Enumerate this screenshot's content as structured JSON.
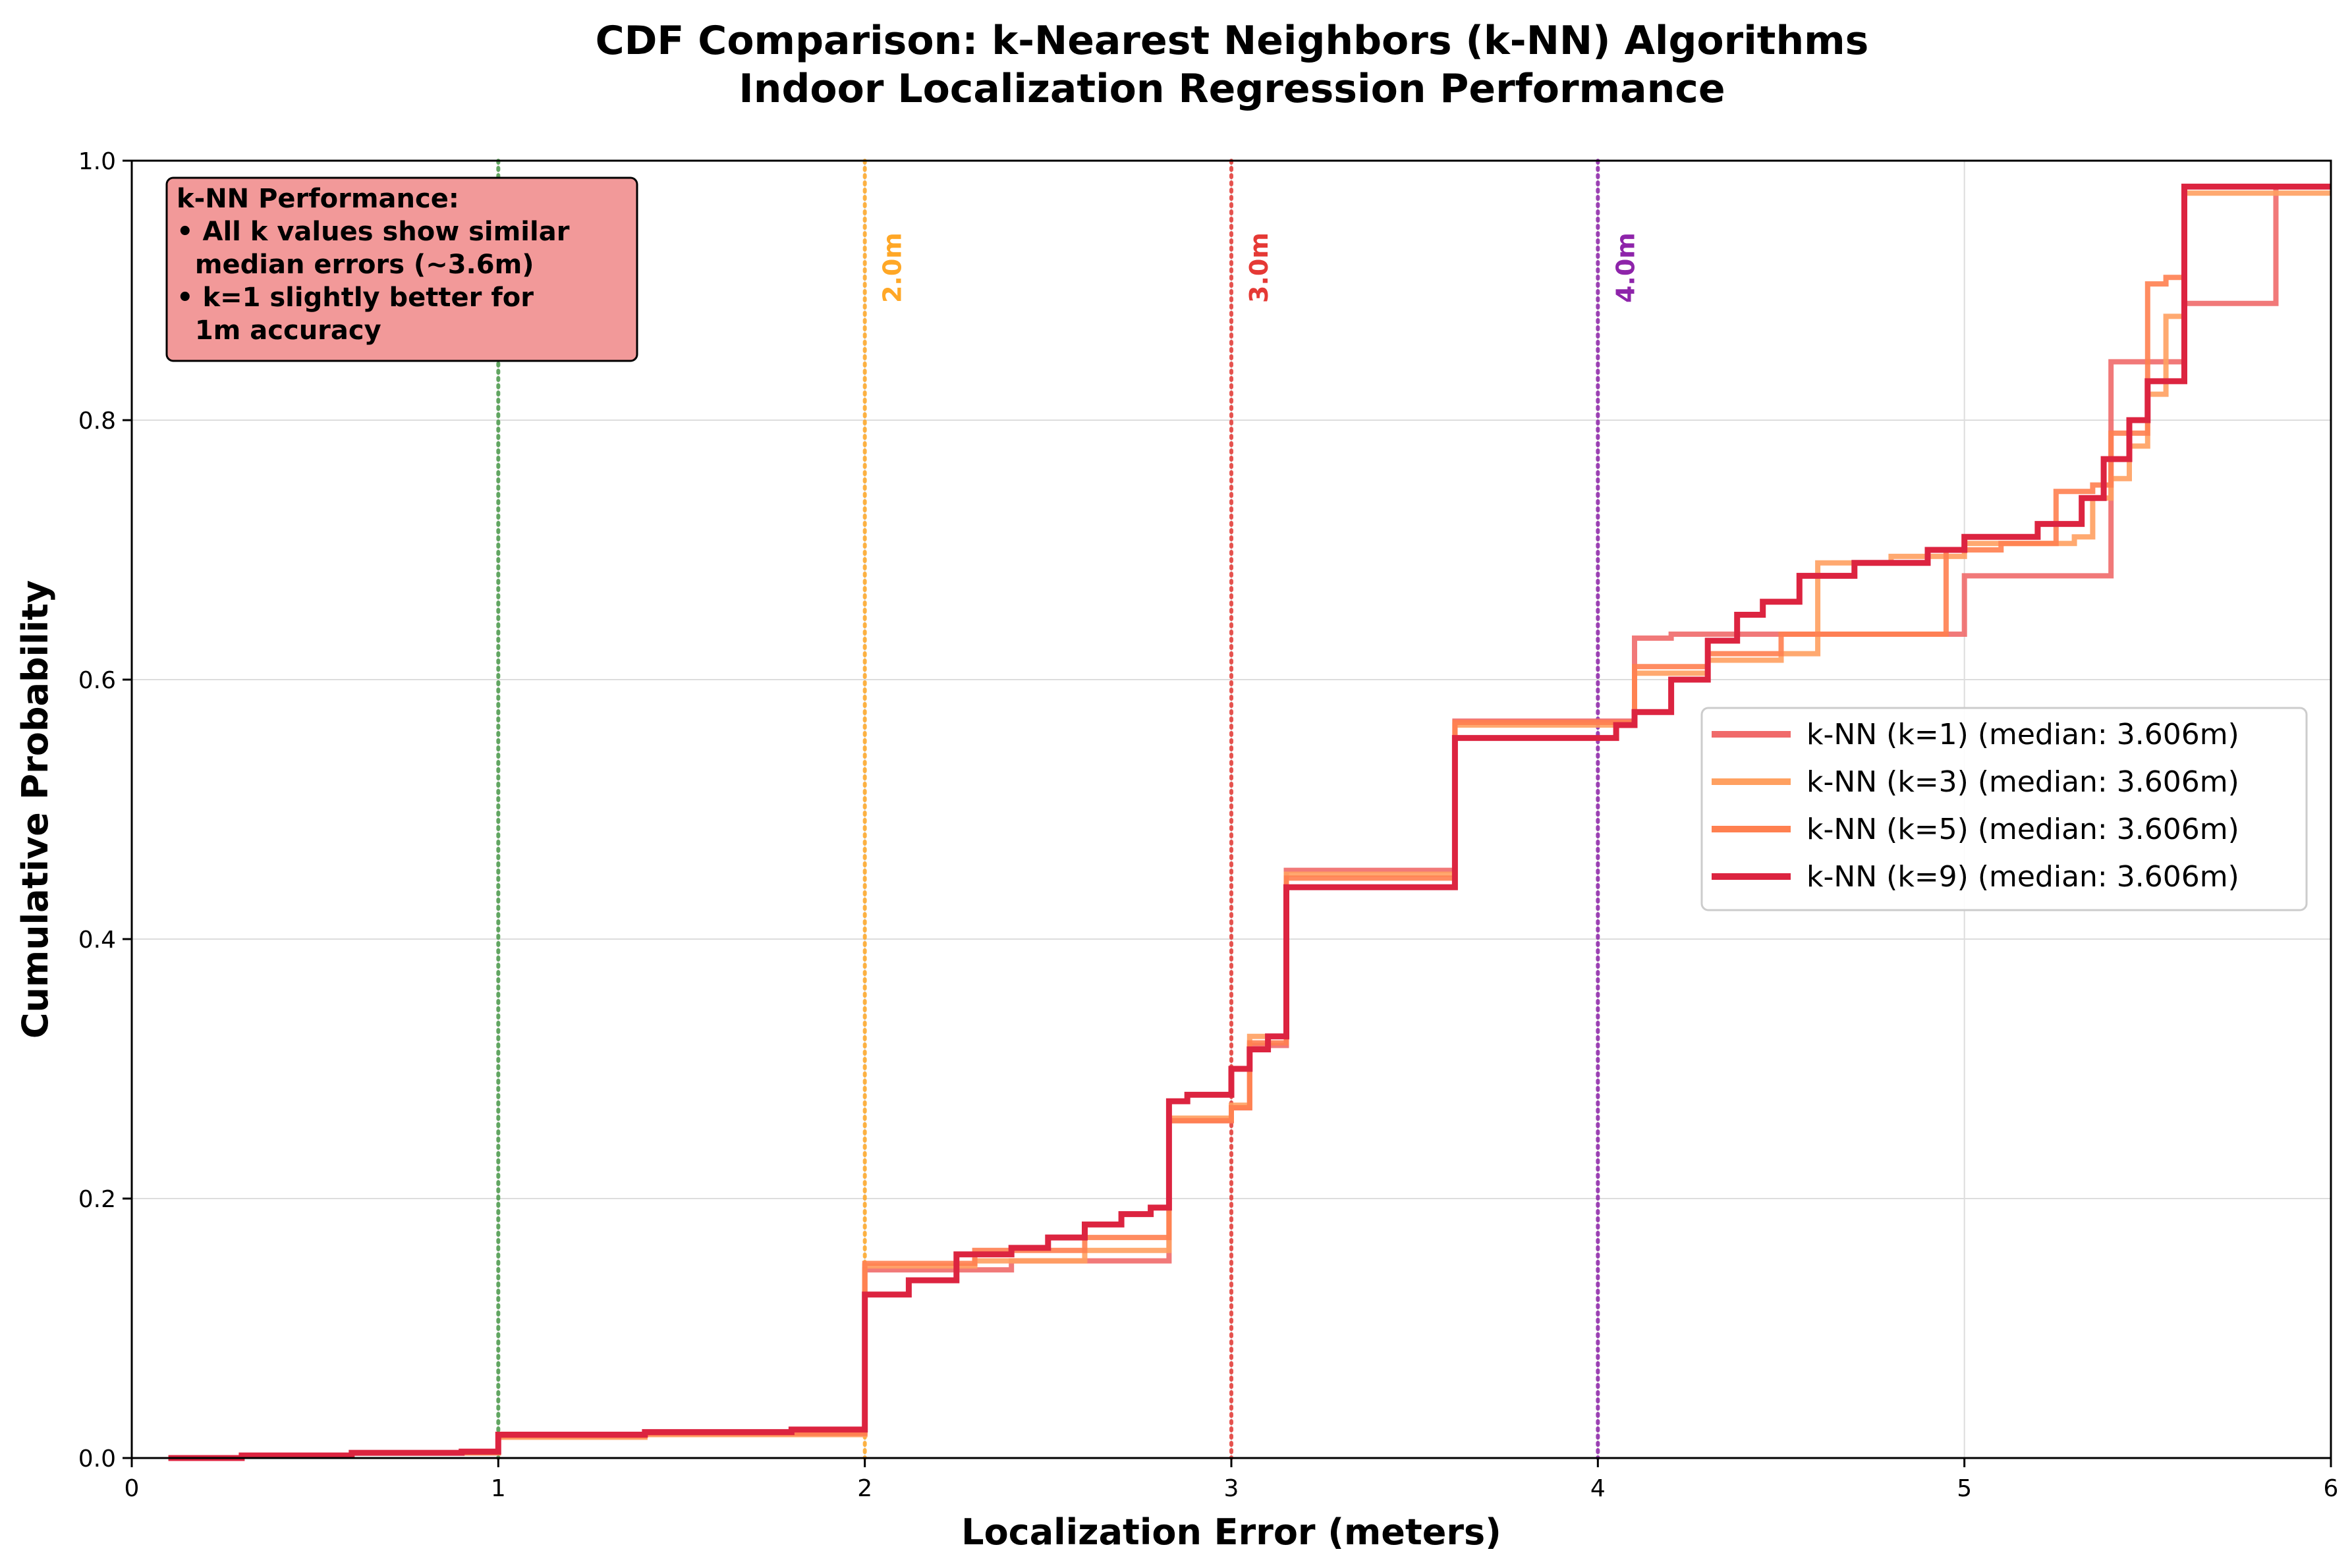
{
  "chart_data": {
    "type": "line",
    "title_line1": "CDF Comparison: k-Nearest Neighbors (k-NN) Algorithms",
    "title_line2": "Indoor Localization Regression Performance",
    "xlabel": "Localization Error (meters)",
    "ylabel": "Cumulative Probability",
    "xlim": [
      0,
      6
    ],
    "ylim": [
      0,
      1.0
    ],
    "xticks": [
      "0",
      "1",
      "2",
      "3",
      "4",
      "5",
      "6"
    ],
    "yticks": [
      "0.0",
      "0.2",
      "0.4",
      "0.6",
      "0.8",
      "1.0"
    ],
    "grid": true,
    "legend_position": "center-right",
    "annotation_lines": [
      "k-NN Performance:",
      "• All k values show similar",
      "  median errors (~3.6m)",
      "• k=1 slightly better for",
      "  1m accuracy"
    ],
    "reference_lines": [
      {
        "x": 1.0,
        "label": "",
        "color": "#4a9a4a"
      },
      {
        "x": 2.0,
        "label": "2.0m",
        "color": "#ffa726"
      },
      {
        "x": 3.0,
        "label": "3.0m",
        "color": "#e53935"
      },
      {
        "x": 4.0,
        "label": "4.0m",
        "color": "#8e24aa"
      }
    ],
    "series": [
      {
        "name": "k-NN (k=1) (median: 3.606m)",
        "color": "#f06a6a",
        "x": [
          0.1,
          0.3,
          0.6,
          1.0,
          1.0,
          1.4,
          2.0,
          2.0,
          2.4,
          2.83,
          2.83,
          3.0,
          3.05,
          3.15,
          3.15,
          3.61,
          3.61,
          4.1,
          4.1,
          4.12,
          4.2,
          5.0,
          5.0,
          5.4,
          5.4,
          5.55,
          5.6,
          5.85,
          5.85,
          6.0
        ],
        "y": [
          0.0,
          0.002,
          0.004,
          0.006,
          0.018,
          0.02,
          0.022,
          0.145,
          0.152,
          0.158,
          0.26,
          0.27,
          0.318,
          0.318,
          0.453,
          0.453,
          0.568,
          0.568,
          0.632,
          0.632,
          0.635,
          0.635,
          0.68,
          0.68,
          0.845,
          0.845,
          0.89,
          0.89,
          0.98,
          0.98
        ]
      },
      {
        "name": "k-NN (k=3) (median: 3.606m)",
        "color": "#ffa060",
        "x": [
          0.1,
          0.3,
          0.6,
          1.0,
          1.0,
          1.4,
          2.0,
          2.0,
          2.3,
          2.6,
          2.83,
          2.83,
          3.0,
          3.05,
          3.15,
          3.15,
          3.61,
          3.61,
          4.1,
          4.1,
          4.3,
          4.5,
          4.6,
          4.6,
          4.8,
          5.0,
          5.3,
          5.35,
          5.4,
          5.45,
          5.5,
          5.55,
          5.6,
          5.6,
          5.8,
          6.0
        ],
        "y": [
          0.0,
          0.002,
          0.004,
          0.006,
          0.016,
          0.018,
          0.02,
          0.148,
          0.152,
          0.16,
          0.16,
          0.262,
          0.272,
          0.325,
          0.33,
          0.45,
          0.45,
          0.565,
          0.565,
          0.605,
          0.615,
          0.62,
          0.64,
          0.69,
          0.695,
          0.705,
          0.71,
          0.74,
          0.755,
          0.78,
          0.82,
          0.88,
          0.9,
          0.975,
          0.975,
          0.975
        ]
      },
      {
        "name": "k-NN (k=5) (median: 3.606m)",
        "color": "#ff8050",
        "x": [
          0.1,
          0.3,
          0.6,
          1.0,
          1.0,
          1.4,
          2.0,
          2.0,
          2.3,
          2.6,
          2.83,
          2.83,
          3.0,
          3.05,
          3.15,
          3.15,
          3.61,
          3.61,
          4.1,
          4.1,
          4.3,
          4.5,
          4.95,
          4.95,
          5.1,
          5.25,
          5.35,
          5.4,
          5.5,
          5.5,
          5.55,
          5.6,
          5.6,
          6.0
        ],
        "y": [
          0.0,
          0.002,
          0.004,
          0.006,
          0.017,
          0.019,
          0.021,
          0.15,
          0.16,
          0.17,
          0.175,
          0.26,
          0.27,
          0.32,
          0.325,
          0.447,
          0.447,
          0.567,
          0.567,
          0.61,
          0.62,
          0.635,
          0.64,
          0.7,
          0.705,
          0.745,
          0.75,
          0.79,
          0.82,
          0.905,
          0.91,
          0.91,
          0.98,
          0.98
        ]
      },
      {
        "name": "k-NN (k=9) (median: 3.606m)",
        "color": "#dc2440",
        "x": [
          0.1,
          0.3,
          0.6,
          0.9,
          1.0,
          1.0,
          1.4,
          1.8,
          2.0,
          2.0,
          2.12,
          2.12,
          2.25,
          2.25,
          2.4,
          2.5,
          2.6,
          2.7,
          2.78,
          2.83,
          2.83,
          2.88,
          3.0,
          3.0,
          3.05,
          3.1,
          3.15,
          3.15,
          3.61,
          3.61,
          4.05,
          4.1,
          4.2,
          4.3,
          4.38,
          4.45,
          4.55,
          4.7,
          4.9,
          5.0,
          5.2,
          5.28,
          5.32,
          5.38,
          5.45,
          5.5,
          5.55,
          5.6,
          5.6,
          6.0
        ],
        "y": [
          0.0,
          0.002,
          0.004,
          0.005,
          0.006,
          0.018,
          0.02,
          0.022,
          0.024,
          0.126,
          0.128,
          0.137,
          0.14,
          0.157,
          0.162,
          0.17,
          0.18,
          0.188,
          0.193,
          0.195,
          0.275,
          0.28,
          0.28,
          0.3,
          0.315,
          0.325,
          0.335,
          0.44,
          0.445,
          0.555,
          0.565,
          0.575,
          0.6,
          0.63,
          0.65,
          0.66,
          0.68,
          0.69,
          0.7,
          0.71,
          0.72,
          0.72,
          0.74,
          0.77,
          0.8,
          0.83,
          0.83,
          0.9,
          0.98,
          0.98
        ]
      }
    ]
  }
}
